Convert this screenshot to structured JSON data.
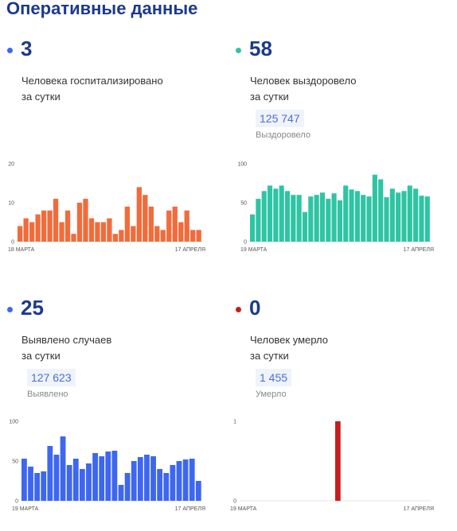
{
  "header": {
    "title": "Оперативные данные"
  },
  "panels": [
    {
      "value": "3",
      "line1": "Человека госпитализировано",
      "line2": "за сутки",
      "total": "",
      "total_label": ""
    },
    {
      "value": "58",
      "line1": "Человек выздоровело",
      "line2": "за сутки",
      "total": "125 747",
      "total_label": "Выздоровело"
    },
    {
      "value": "25",
      "line1": "Выявлено случаев",
      "line2": "за сутки",
      "total": "127 623",
      "total_label": "Выявлено"
    },
    {
      "value": "0",
      "line1": "Человек умерло",
      "line2": "за сутки",
      "total": "1 455",
      "total_label": "Умерло"
    }
  ],
  "chart_data": [
    {
      "type": "bar",
      "color": "#f26b3a",
      "ylim": [
        0,
        20
      ],
      "yticks": [
        "0",
        "10",
        "20"
      ],
      "x_start_label": "18 МАРТА",
      "x_end_label": "17 АПРЕЛЯ",
      "values": [
        4,
        6,
        5,
        7,
        8,
        8,
        11,
        5,
        8,
        2,
        10,
        11,
        6,
        5,
        5,
        6,
        2,
        3,
        9,
        4,
        14,
        12,
        9,
        4,
        3,
        8,
        9,
        5,
        8,
        3,
        3
      ]
    },
    {
      "type": "bar",
      "color": "#2ec4a4",
      "ylim": [
        0,
        100
      ],
      "yticks": [
        "0",
        "50",
        "100"
      ],
      "x_start_label": "19 МАРТА",
      "x_end_label": "17 АПРЕЛЯ",
      "values": [
        35,
        55,
        65,
        72,
        68,
        72,
        65,
        60,
        60,
        38,
        58,
        60,
        63,
        55,
        62,
        53,
        72,
        67,
        65,
        60,
        58,
        86,
        80,
        57,
        68,
        63,
        65,
        72,
        68,
        59,
        58
      ]
    },
    {
      "type": "bar",
      "color": "#3d67f0",
      "ylim": [
        0,
        100
      ],
      "yticks": [
        "0",
        "50",
        "100"
      ],
      "x_start_label": "19 МАРТА",
      "x_end_label": "17 АПРЕЛЯ",
      "values": [
        53,
        43,
        35,
        37,
        69,
        58,
        81,
        45,
        53,
        40,
        47,
        60,
        56,
        62,
        63,
        20,
        35,
        50,
        55,
        58,
        56,
        40,
        35,
        45,
        50,
        52,
        53,
        25
      ]
    },
    {
      "type": "bar",
      "color": "#c71d1d",
      "ylim": [
        0,
        1
      ],
      "yticks": [
        "0",
        "1"
      ],
      "x_start_label": "19 МАРТА",
      "x_end_label": "17 АПРЕЛЯ",
      "values": [
        0,
        0,
        0,
        0,
        0,
        0,
        0,
        0,
        0,
        0,
        0,
        0,
        0,
        0,
        0,
        1,
        0,
        0,
        0,
        0,
        0,
        0,
        0,
        0,
        0,
        0,
        0,
        0,
        0,
        0
      ]
    }
  ]
}
